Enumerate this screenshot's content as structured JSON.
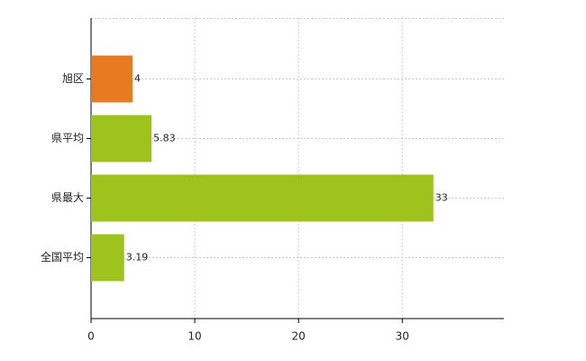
{
  "chart_data": {
    "type": "hbar",
    "categories": [
      "旭区",
      "県平均",
      "県最大",
      "全国平均"
    ],
    "values": [
      4,
      5.83,
      33,
      3.19
    ],
    "colors": [
      "#e87b22",
      "#9dc31c",
      "#9dc31c",
      "#9dc31c"
    ],
    "xlim": [
      0,
      39.8
    ],
    "xticks": [
      0,
      10,
      20,
      30
    ],
    "grid": true
  }
}
